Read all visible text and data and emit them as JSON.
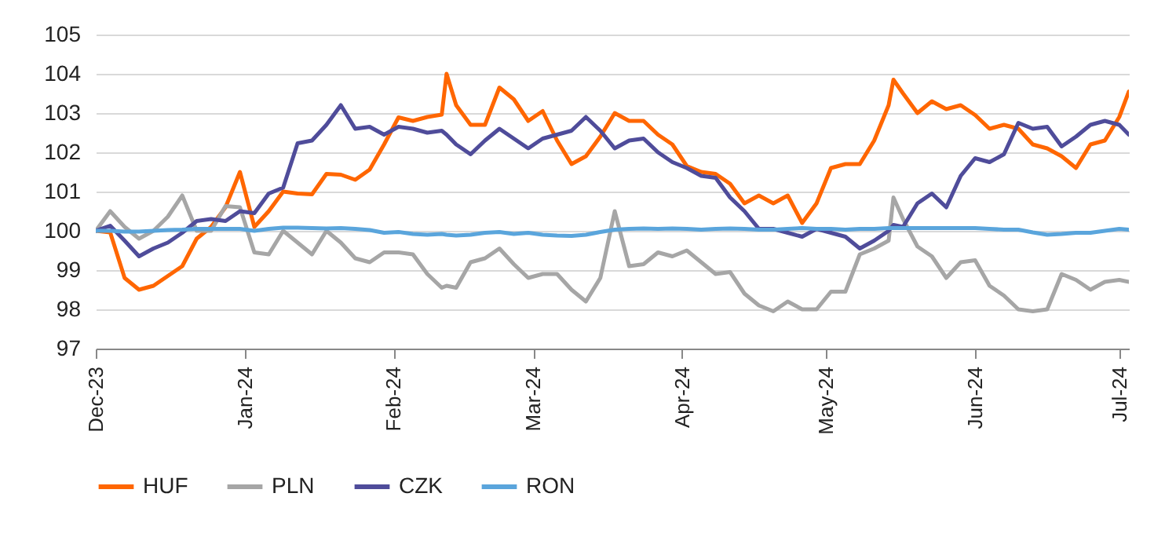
{
  "chart_data": {
    "type": "line",
    "grid": "y",
    "legend": "bottom",
    "x": [
      "2023-12-01",
      "2023-12-04",
      "2023-12-07",
      "2023-12-10",
      "2023-12-13",
      "2023-12-16",
      "2023-12-19",
      "2023-12-22",
      "2023-12-25",
      "2023-12-28",
      "2023-12-31",
      "2024-01-03",
      "2024-01-06",
      "2024-01-09",
      "2024-01-12",
      "2024-01-15",
      "2024-01-18",
      "2024-01-21",
      "2024-01-24",
      "2024-01-27",
      "2024-01-30",
      "2024-02-02",
      "2024-02-05",
      "2024-02-08",
      "2024-02-11",
      "2024-02-12",
      "2024-02-14",
      "2024-02-17",
      "2024-02-20",
      "2024-02-23",
      "2024-02-26",
      "2024-02-29",
      "2024-03-03",
      "2024-03-06",
      "2024-03-09",
      "2024-03-12",
      "2024-03-15",
      "2024-03-18",
      "2024-03-21",
      "2024-03-24",
      "2024-03-27",
      "2024-03-30",
      "2024-04-02",
      "2024-04-05",
      "2024-04-08",
      "2024-04-11",
      "2024-04-14",
      "2024-04-17",
      "2024-04-20",
      "2024-04-23",
      "2024-04-26",
      "2024-04-29",
      "2024-05-02",
      "2024-05-05",
      "2024-05-08",
      "2024-05-11",
      "2024-05-14",
      "2024-05-15",
      "2024-05-17",
      "2024-05-20",
      "2024-05-23",
      "2024-05-26",
      "2024-05-29",
      "2024-06-01",
      "2024-06-04",
      "2024-06-07",
      "2024-06-10",
      "2024-06-13",
      "2024-06-16",
      "2024-06-19",
      "2024-06-22",
      "2024-06-25",
      "2024-06-28",
      "2024-07-01",
      "2024-07-03"
    ],
    "xlim": [
      "2023-12-01",
      "2024-07-03"
    ],
    "xticks": [
      {
        "value": "2023-12-01",
        "label": "Dec-23"
      },
      {
        "value": "2024-01-01",
        "label": "Jan-24"
      },
      {
        "value": "2024-02-01",
        "label": "Feb-24"
      },
      {
        "value": "2024-03-01",
        "label": "Mar-24"
      },
      {
        "value": "2024-04-01",
        "label": "Apr-24"
      },
      {
        "value": "2024-05-01",
        "label": "May-24"
      },
      {
        "value": "2024-06-01",
        "label": "Jun-24"
      },
      {
        "value": "2024-07-01",
        "label": "Jul-24"
      }
    ],
    "ylim": [
      97,
      105
    ],
    "yticks": [
      97,
      98,
      99,
      100,
      101,
      102,
      103,
      104,
      105
    ],
    "series": [
      {
        "name": "HUF",
        "color": "#ff6600",
        "values": [
          100,
          99.96,
          98.8,
          98.5,
          98.6,
          98.85,
          99.1,
          99.8,
          100.1,
          100.6,
          101.5,
          100.1,
          100.5,
          101.0,
          100.95,
          100.93,
          101.45,
          101.43,
          101.3,
          101.56,
          102.2,
          102.89,
          102.8,
          102.9,
          102.96,
          104.0,
          103.2,
          102.7,
          102.7,
          103.65,
          103.35,
          102.8,
          103.05,
          102.3,
          101.7,
          101.9,
          102.4,
          103.0,
          102.8,
          102.8,
          102.45,
          102.2,
          101.65,
          101.5,
          101.45,
          101.2,
          100.7,
          100.9,
          100.7,
          100.9,
          100.2,
          100.7,
          101.6,
          101.7,
          101.7,
          102.3,
          103.2,
          103.85,
          103.5,
          103.0,
          103.3,
          103.1,
          103.2,
          102.95,
          102.6,
          102.7,
          102.6,
          102.2,
          102.1,
          101.9,
          101.6,
          102.2,
          102.3,
          102.9,
          103.55
        ]
      },
      {
        "name": "PLN",
        "color": "#a6a6a6",
        "values": [
          100,
          100.5,
          100.1,
          99.8,
          100.0,
          100.36,
          100.9,
          100.0,
          100.0,
          100.63,
          100.6,
          99.45,
          99.4,
          100.0,
          99.7,
          99.4,
          100.0,
          99.7,
          99.3,
          99.2,
          99.45,
          99.45,
          99.4,
          98.9,
          98.55,
          98.6,
          98.55,
          99.2,
          99.3,
          99.55,
          99.15,
          98.8,
          98.9,
          98.9,
          98.5,
          98.2,
          98.8,
          100.5,
          99.1,
          99.15,
          99.45,
          99.35,
          99.5,
          99.2,
          98.9,
          98.95,
          98.4,
          98.1,
          97.95,
          98.2,
          98.0,
          98.0,
          98.45,
          98.45,
          99.4,
          99.55,
          99.75,
          100.85,
          100.3,
          99.6,
          99.35,
          98.8,
          99.2,
          99.25,
          98.6,
          98.35,
          98.0,
          97.95,
          98.0,
          98.9,
          98.75,
          98.5,
          98.7,
          98.75,
          98.7
        ]
      },
      {
        "name": "CZK",
        "color": "#4f4c9a",
        "values": [
          100,
          100.13,
          99.75,
          99.35,
          99.55,
          99.7,
          99.95,
          100.25,
          100.3,
          100.25,
          100.5,
          100.45,
          100.95,
          101.1,
          102.23,
          102.3,
          102.7,
          103.2,
          102.6,
          102.65,
          102.45,
          102.65,
          102.6,
          102.5,
          102.55,
          102.45,
          102.2,
          101.95,
          102.3,
          102.6,
          102.35,
          102.1,
          102.35,
          102.45,
          102.55,
          102.9,
          102.55,
          102.1,
          102.3,
          102.35,
          102.0,
          101.75,
          101.6,
          101.4,
          101.35,
          100.85,
          100.5,
          100.05,
          100.05,
          99.95,
          99.85,
          100.05,
          99.95,
          99.85,
          99.55,
          99.75,
          100.0,
          100.15,
          100.1,
          100.7,
          100.95,
          100.6,
          101.4,
          101.85,
          101.75,
          101.95,
          102.75,
          102.6,
          102.65,
          102.15,
          102.4,
          102.7,
          102.8,
          102.7,
          102.45
        ]
      },
      {
        "name": "RON",
        "color": "#5aa5dc",
        "values": [
          100,
          100.0,
          99.98,
          99.98,
          100.0,
          100.02,
          100.03,
          100.05,
          100.05,
          100.05,
          100.05,
          100.0,
          100.05,
          100.08,
          100.08,
          100.07,
          100.06,
          100.07,
          100.05,
          100.02,
          99.95,
          99.97,
          99.92,
          99.9,
          99.92,
          99.9,
          99.88,
          99.9,
          99.95,
          99.97,
          99.92,
          99.95,
          99.9,
          99.88,
          99.87,
          99.9,
          99.97,
          100.03,
          100.05,
          100.06,
          100.05,
          100.06,
          100.05,
          100.03,
          100.05,
          100.06,
          100.05,
          100.03,
          100.03,
          100.05,
          100.07,
          100.05,
          100.05,
          100.03,
          100.05,
          100.05,
          100.07,
          100.07,
          100.07,
          100.07,
          100.07,
          100.07,
          100.07,
          100.07,
          100.05,
          100.03,
          100.03,
          99.96,
          99.9,
          99.92,
          99.95,
          99.95,
          100.0,
          100.05,
          100.03
        ]
      }
    ]
  }
}
